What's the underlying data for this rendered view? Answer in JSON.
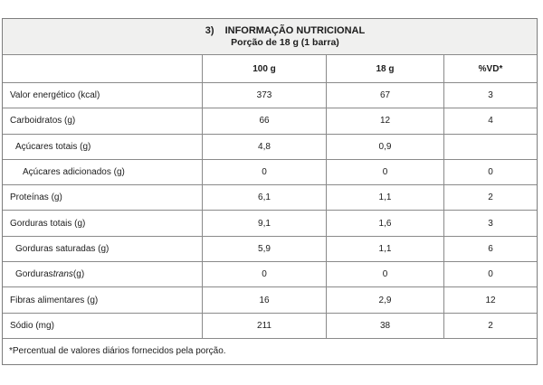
{
  "header": {
    "number": "3)",
    "title": "INFORMAÇÃO NUTRICIONAL",
    "subtitle": "Porção de 18 g (1 barra)"
  },
  "columns": {
    "c100": "100 g",
    "c18": "18 g",
    "cvd": "%VD*"
  },
  "rows": [
    {
      "label": "Valor energético (kcal)",
      "indent": 0,
      "v100": "373",
      "v18": "67",
      "vd": "3"
    },
    {
      "label": "Carboidratos (g)",
      "indent": 0,
      "v100": "66",
      "v18": "12",
      "vd": "4"
    },
    {
      "label": "Açúcares totais (g)",
      "indent": 1,
      "v100": "4,8",
      "v18": "0,9",
      "vd": ""
    },
    {
      "label": "Açúcares adicionados (g)",
      "indent": 2,
      "v100": "0",
      "v18": "0",
      "vd": "0"
    },
    {
      "label": "Proteínas (g)",
      "indent": 0,
      "v100": "6,1",
      "v18": "1,1",
      "vd": "2"
    },
    {
      "label": "Gorduras totais (g)",
      "indent": 0,
      "v100": "9,1",
      "v18": "1,6",
      "vd": "3"
    },
    {
      "label": "Gorduras saturadas (g)",
      "indent": 1,
      "v100": "5,9",
      "v18": "1,1",
      "vd": "6"
    },
    {
      "label_prefix": "Gorduras ",
      "label_italic": "trans",
      "label_suffix": " (g)",
      "indent": 1,
      "v100": "0",
      "v18": "0",
      "vd": "0"
    },
    {
      "label": "Fibras alimentares (g)",
      "indent": 0,
      "v100": "16",
      "v18": "2,9",
      "vd": "12"
    },
    {
      "label": "Sódio (mg)",
      "indent": 0,
      "v100": "211",
      "v18": "38",
      "vd": "2"
    }
  ],
  "footnote": "*Percentual de valores diários fornecidos pela porção.",
  "colors": {
    "header_background": "#f0f0ef",
    "border": "#8a8a8a",
    "text": "#1c1c1c"
  }
}
